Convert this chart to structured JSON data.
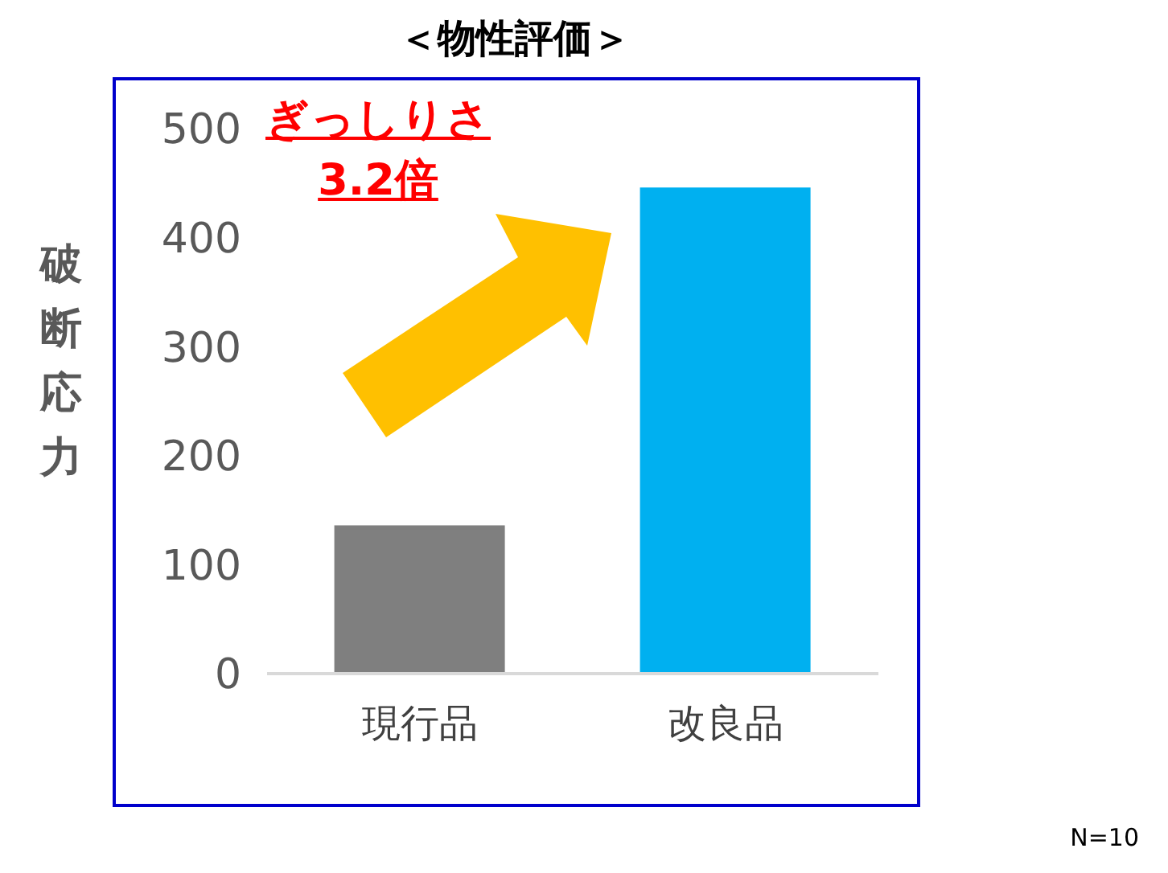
{
  "chart_data": {
    "type": "bar",
    "title": "＜物性評価＞",
    "ylabel": "破断応力",
    "categories": [
      "現行品",
      "改良品"
    ],
    "values": [
      136,
      446
    ],
    "colors": [
      "#7f7f7f",
      "#00b0f0"
    ],
    "ylim": [
      0,
      500
    ],
    "yticks": [
      0,
      100,
      200,
      300,
      400,
      500
    ],
    "grid": false,
    "legend": false,
    "annotations": [
      "ぎっしりさ\n3.2倍",
      "N=10"
    ]
  }
}
